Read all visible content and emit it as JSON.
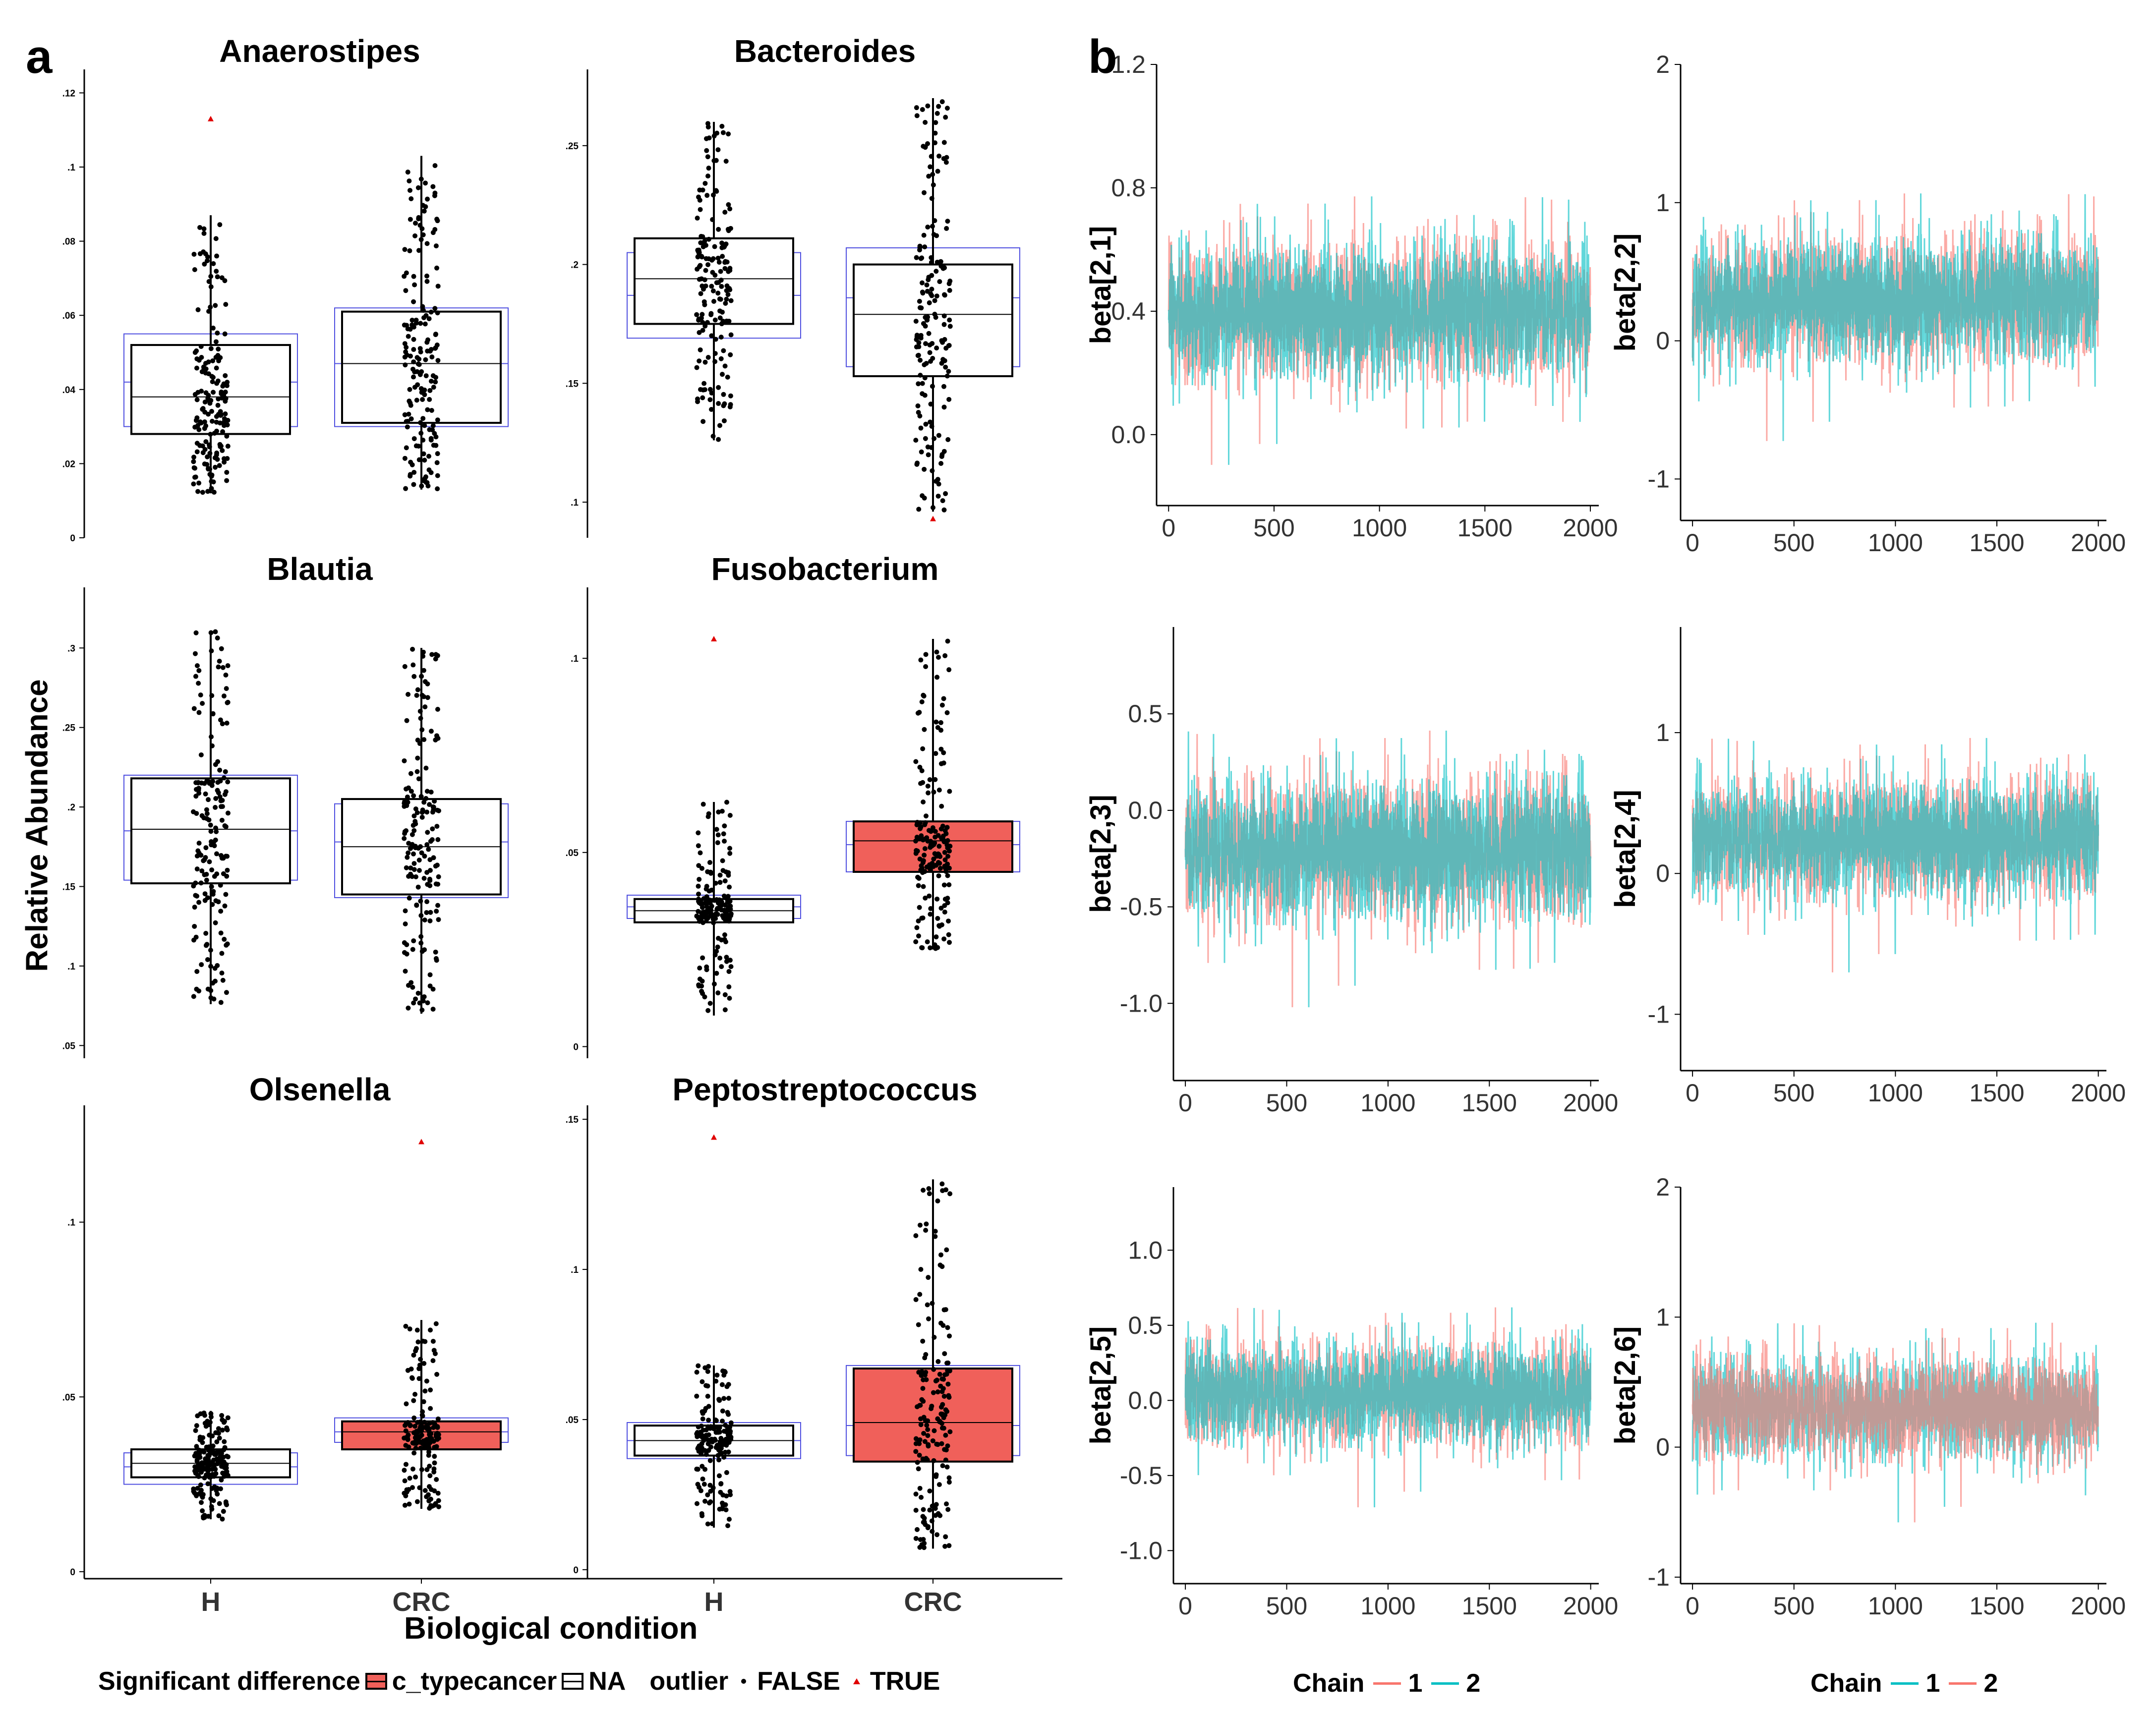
{
  "panel_a_label": "a",
  "panel_b_label": "b",
  "panel_a_ylabel": "Relative Abundance",
  "panel_a_xlabel": "Biological condition",
  "legend_a": {
    "title": "Significant difference",
    "item1": "c_typecancer",
    "item2": "NA",
    "outlier_title": "outlier",
    "outlier_false": "FALSE",
    "outlier_true": "TRUE"
  },
  "legend_b1": {
    "title": "Chain",
    "first": "1",
    "second": "2"
  },
  "legend_b2": {
    "title": "Chain",
    "first": "1",
    "second": "2"
  },
  "colors": {
    "significant": "#F0605A",
    "na": "#FFFFFF",
    "ref_box": "#5050E0",
    "chain1": "#F8766D",
    "chain2": "#00BFC4",
    "outlier": "#E00000"
  },
  "chart_data": [
    {
      "type": "box",
      "title": "Anaerostipes",
      "categories": [
        "H",
        "CRC"
      ],
      "yticks": [
        ".12",
        ".1",
        ".08",
        ".06",
        ".04",
        ".02",
        "0"
      ],
      "ytick_values": [
        0.12,
        0.1,
        0.08,
        0.06,
        0.04,
        0.02,
        0
      ],
      "ylim": [
        0,
        0.125
      ],
      "boxes": [
        {
          "q1": 0.028,
          "median": 0.038,
          "q3": 0.052,
          "lower": 0.012,
          "upper": 0.087,
          "fill": "NA",
          "ref_q1": 0.03,
          "ref_median": 0.042,
          "ref_q3": 0.055
        },
        {
          "q1": 0.031,
          "median": 0.047,
          "q3": 0.061,
          "lower": 0.013,
          "upper": 0.103,
          "fill": "NA",
          "ref_q1": 0.03,
          "ref_median": 0.047,
          "ref_q3": 0.062
        }
      ],
      "outliers": [
        {
          "group": "H",
          "value": 0.113
        }
      ]
    },
    {
      "type": "box",
      "title": "Bacteroides",
      "categories": [
        "H",
        "CRC"
      ],
      "yticks": [
        ".25",
        ".2",
        ".15",
        ".1"
      ],
      "ytick_values": [
        0.25,
        0.2,
        0.15,
        0.1
      ],
      "ylim": [
        0.085,
        0.28
      ],
      "boxes": [
        {
          "q1": 0.175,
          "median": 0.194,
          "q3": 0.211,
          "lower": 0.126,
          "upper": 0.26,
          "fill": "NA",
          "ref_q1": 0.169,
          "ref_median": 0.187,
          "ref_q3": 0.205
        },
        {
          "q1": 0.153,
          "median": 0.179,
          "q3": 0.2,
          "lower": 0.096,
          "upper": 0.27,
          "fill": "NA",
          "ref_q1": 0.157,
          "ref_median": 0.186,
          "ref_q3": 0.207
        }
      ],
      "outliers": [
        {
          "group": "CRC",
          "value": 0.093
        }
      ]
    },
    {
      "type": "box",
      "title": "Blautia",
      "categories": [
        "H",
        "CRC"
      ],
      "yticks": [
        ".3",
        ".25",
        ".2",
        ".15",
        ".1",
        ".05"
      ],
      "ytick_values": [
        0.3,
        0.25,
        0.2,
        0.15,
        0.1,
        0.05
      ],
      "ylim": [
        0.042,
        0.335
      ],
      "boxes": [
        {
          "q1": 0.152,
          "median": 0.186,
          "q3": 0.218,
          "lower": 0.076,
          "upper": 0.311,
          "fill": "NA",
          "ref_q1": 0.154,
          "ref_median": 0.185,
          "ref_q3": 0.22
        },
        {
          "q1": 0.145,
          "median": 0.175,
          "q3": 0.205,
          "lower": 0.07,
          "upper": 0.3,
          "fill": "NA",
          "ref_q1": 0.143,
          "ref_median": 0.178,
          "ref_q3": 0.202
        }
      ],
      "outliers": []
    },
    {
      "type": "box",
      "title": "Fusobacterium",
      "categories": [
        "H",
        "CRC"
      ],
      "yticks": [
        ".1",
        ".05",
        "0"
      ],
      "ytick_values": [
        0.1,
        0.05,
        0
      ],
      "ylim": [
        -0.003,
        0.117
      ],
      "boxes": [
        {
          "q1": 0.032,
          "median": 0.035,
          "q3": 0.038,
          "lower": 0.008,
          "upper": 0.063,
          "fill": "NA",
          "ref_q1": 0.033,
          "ref_median": 0.036,
          "ref_q3": 0.039
        },
        {
          "q1": 0.045,
          "median": 0.053,
          "q3": 0.058,
          "lower": 0.025,
          "upper": 0.105,
          "fill": "c_typecancer",
          "ref_q1": 0.045,
          "ref_median": 0.052,
          "ref_q3": 0.058
        }
      ],
      "outliers": [
        {
          "group": "H",
          "value": 0.105
        }
      ]
    },
    {
      "type": "box",
      "title": "Olsenella",
      "categories": [
        "H",
        "CRC"
      ],
      "yticks": [
        ".1",
        ".05",
        "0"
      ],
      "ytick_values": [
        0.1,
        0.05,
        0
      ],
      "ylim": [
        -0.002,
        0.132
      ],
      "boxes": [
        {
          "q1": 0.027,
          "median": 0.031,
          "q3": 0.035,
          "lower": 0.015,
          "upper": 0.046,
          "fill": "NA",
          "ref_q1": 0.025,
          "ref_median": 0.03,
          "ref_q3": 0.034
        },
        {
          "q1": 0.035,
          "median": 0.04,
          "q3": 0.043,
          "lower": 0.018,
          "upper": 0.072,
          "fill": "c_typecancer",
          "ref_q1": 0.037,
          "ref_median": 0.04,
          "ref_q3": 0.044
        }
      ],
      "outliers": [
        {
          "group": "CRC",
          "value": 0.123
        }
      ]
    },
    {
      "type": "box",
      "title": "Peptostreptococcus",
      "categories": [
        "H",
        "CRC"
      ],
      "yticks": [
        ".15",
        ".1",
        ".05",
        "0"
      ],
      "ytick_values": [
        0.15,
        0.1,
        0.05,
        0
      ],
      "ylim": [
        -0.003,
        0.153
      ],
      "boxes": [
        {
          "q1": 0.038,
          "median": 0.043,
          "q3": 0.048,
          "lower": 0.014,
          "upper": 0.068,
          "fill": "NA",
          "ref_q1": 0.037,
          "ref_median": 0.043,
          "ref_q3": 0.049
        },
        {
          "q1": 0.036,
          "median": 0.049,
          "q3": 0.067,
          "lower": 0.007,
          "upper": 0.13,
          "fill": "c_typecancer",
          "ref_q1": 0.038,
          "ref_median": 0.048,
          "ref_q3": 0.068
        }
      ],
      "outliers": [
        {
          "group": "H",
          "value": 0.144
        }
      ]
    },
    {
      "type": "line",
      "ylabel": "beta[2,1]",
      "xticks": [
        "0",
        "500",
        "1000",
        "1500",
        "2000"
      ],
      "xtick_values": [
        0,
        500,
        1000,
        1500,
        2000
      ],
      "yticks": [
        "1.2",
        "0.8",
        "0.4",
        "0.0"
      ],
      "ytick_values": [
        1.2,
        0.8,
        0.4,
        0
      ],
      "ylim": [
        -0.23,
        1.2
      ],
      "xlim": [
        -10,
        2040
      ],
      "center": 0.4,
      "spread": 0.34,
      "legend_order": [
        "1",
        "2"
      ]
    },
    {
      "type": "line",
      "ylabel": "beta[2,2]",
      "xticks": [
        "0",
        "500",
        "1000",
        "1500",
        "2000"
      ],
      "xtick_values": [
        0,
        500,
        1000,
        1500,
        2000
      ],
      "yticks": [
        "2",
        "1",
        "0",
        "-1"
      ],
      "ytick_values": [
        2,
        1,
        0,
        -1
      ],
      "ylim": [
        -1.3,
        2.0
      ],
      "xlim": [
        -10,
        2040
      ],
      "center": 0.3,
      "spread": 0.7,
      "legend_order": [
        "1",
        "2"
      ]
    },
    {
      "type": "line",
      "ylabel": "beta[2,3]",
      "xticks": [
        "0",
        "500",
        "1000",
        "1500",
        "2000"
      ],
      "xtick_values": [
        0,
        500,
        1000,
        1500,
        2000
      ],
      "yticks": [
        "0.5",
        "0.0",
        "-0.5",
        "-1.0"
      ],
      "ytick_values": [
        0.5,
        0,
        -0.5,
        -1.0
      ],
      "ylim": [
        -1.4,
        0.95
      ],
      "xlim": [
        -10,
        2040
      ],
      "center": -0.2,
      "spread": 0.56,
      "legend_order": [
        "1",
        "2"
      ]
    },
    {
      "type": "line",
      "ylabel": "beta[2,4]",
      "xticks": [
        "0",
        "500",
        "1000",
        "1500",
        "2000"
      ],
      "xtick_values": [
        0,
        500,
        1000,
        1500,
        2000
      ],
      "yticks": [
        "1",
        "0",
        "-1"
      ],
      "ytick_values": [
        1,
        0,
        -1
      ],
      "ylim": [
        -1.4,
        1.75
      ],
      "xlim": [
        -10,
        2040
      ],
      "center": 0.25,
      "spread": 0.65,
      "legend_order": [
        "1",
        "2"
      ]
    },
    {
      "type": "line",
      "ylabel": "beta[2,5]",
      "xticks": [
        "0",
        "500",
        "1000",
        "1500",
        "2000"
      ],
      "xtick_values": [
        0,
        500,
        1000,
        1500,
        2000
      ],
      "yticks": [
        "1.0",
        "0.5",
        "0.0",
        "-0.5",
        "-1.0"
      ],
      "ytick_values": [
        1.0,
        0.5,
        0,
        -0.5,
        -1.0
      ],
      "ylim": [
        -1.22,
        1.42
      ],
      "xlim": [
        -10,
        2040
      ],
      "center": 0.05,
      "spread": 0.52,
      "legend_order": [
        "1",
        "2"
      ]
    },
    {
      "type": "line",
      "ylabel": "beta[2,6]",
      "xticks": [
        "0",
        "500",
        "1000",
        "1500",
        "2000"
      ],
      "xtick_values": [
        0,
        500,
        1000,
        1500,
        2000
      ],
      "yticks": [
        "2",
        "1",
        "0",
        "-1"
      ],
      "ytick_values": [
        2,
        1,
        0,
        -1
      ],
      "ylim": [
        -1.05,
        2.0
      ],
      "xlim": [
        -10,
        2040
      ],
      "center": 0.3,
      "spread": 0.6,
      "legend_order": [
        "2",
        "1"
      ]
    }
  ]
}
